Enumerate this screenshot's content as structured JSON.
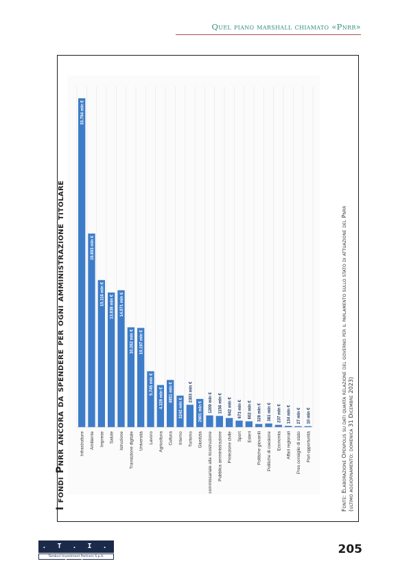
{
  "header": {
    "title": "Quel piano marshall chiamato «Pnrr»"
  },
  "chart_data": {
    "type": "bar",
    "title": "I fondi Pnrr ancora da spendere per ogni amministrazione titolare",
    "categories": [
      "Infrastrutture",
      "Ambiente",
      "Imprese",
      "Salute",
      "Istruzione",
      "Transizione digitale",
      "Università",
      "Lavoro",
      "Agricoltura",
      "Cultura",
      "Interno",
      "Turismo",
      "Giustizia",
      "Struttura commissariale alla ricostruzione",
      "Pubblica amministrazione",
      "Protezione civile",
      "Sport",
      "Esteri",
      "Politiche giovanili",
      "Politiche di coesione",
      "Economia",
      "Affari regionali",
      "Pres consiglio di stato",
      "Pari opportunità"
    ],
    "values": [
      33794,
      19893,
      15116,
      13838,
      14071,
      10262,
      10197,
      5745,
      4329,
      4851,
      3242,
      2303,
      2901,
      1209,
      1156,
      942,
      673,
      602,
      328,
      381,
      237,
      134,
      27,
      10
    ],
    "labels": [
      "33.794 mln €",
      "19.893 mln €",
      "15.116 mln €",
      "13.838 mln €",
      "14.071 mln €",
      "10.262 mln €",
      "10.197 mln €",
      "5.745 mln €",
      "4.329 mln €",
      "4851 mln €",
      "3242 mln €",
      "2303 mln €",
      "2901 mln €",
      "1209 mln €",
      "1156 mln €",
      "942 mln €",
      "673 mln €",
      "602 mln €",
      "328 mln €",
      "381 mln €",
      "237 mln €",
      "134 mln €",
      "27 mln €",
      "10 mln €"
    ],
    "bar_color": "#3d7cc9",
    "xlim": [
      0,
      35000
    ],
    "grid": true
  },
  "source": {
    "line1": "Fonte: Elaborazione Openpolis su dati quarta relazione del governo per il parlamento sullo stato di attuazione del Pnrr",
    "line2": "(ultimo aggiornamento: domenica 31 Dicembre 2023)"
  },
  "logo": {
    "mark": ". T . I . P .",
    "sub": "Tamburi Investment Partners S.p.A."
  },
  "page": {
    "number": "205"
  }
}
